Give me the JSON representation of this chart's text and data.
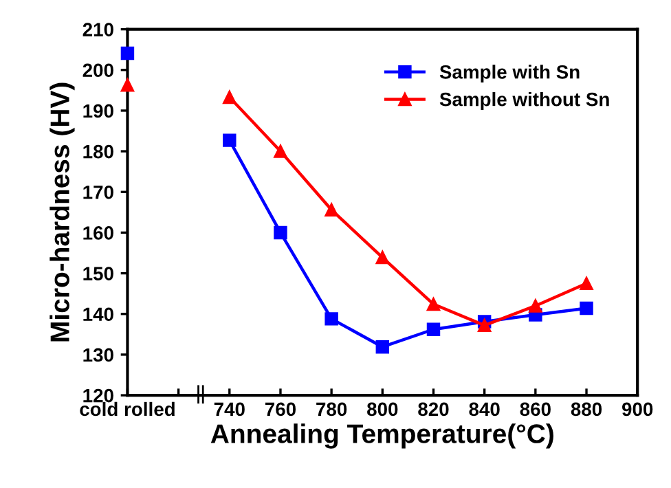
{
  "chart_data": {
    "type": "line",
    "xlabel": "Annealing Temperature(°C)",
    "ylabel": "Micro-hardness (HV)",
    "x": [
      700,
      720,
      740,
      760,
      780,
      800,
      820,
      840,
      860,
      880
    ],
    "series": [
      {
        "name": "Sample with Sn",
        "color": "#0000ff",
        "marker": "square",
        "values": [
          204.1,
          null,
          182.7,
          160.0,
          138.8,
          131.9,
          136.2,
          138.1,
          139.8,
          141.4
        ]
      },
      {
        "name": "Sample without Sn",
        "color": "#ff0000",
        "marker": "triangle",
        "values": [
          196.3,
          null,
          193.3,
          180.0,
          165.6,
          153.9,
          142.4,
          137.2,
          142.0,
          147.5
        ]
      }
    ],
    "xlim": [
      700,
      900
    ],
    "xticks": [
      {
        "value": 700,
        "label": "cold rolled"
      },
      {
        "value": 720,
        "label": null
      },
      740,
      760,
      780,
      800,
      820,
      840,
      860,
      880,
      900
    ],
    "ylim": [
      120,
      210
    ],
    "yticks": [
      120,
      130,
      140,
      150,
      160,
      170,
      180,
      190,
      200,
      210
    ],
    "grid": false,
    "legend": "top right",
    "line_style": "solid"
  }
}
